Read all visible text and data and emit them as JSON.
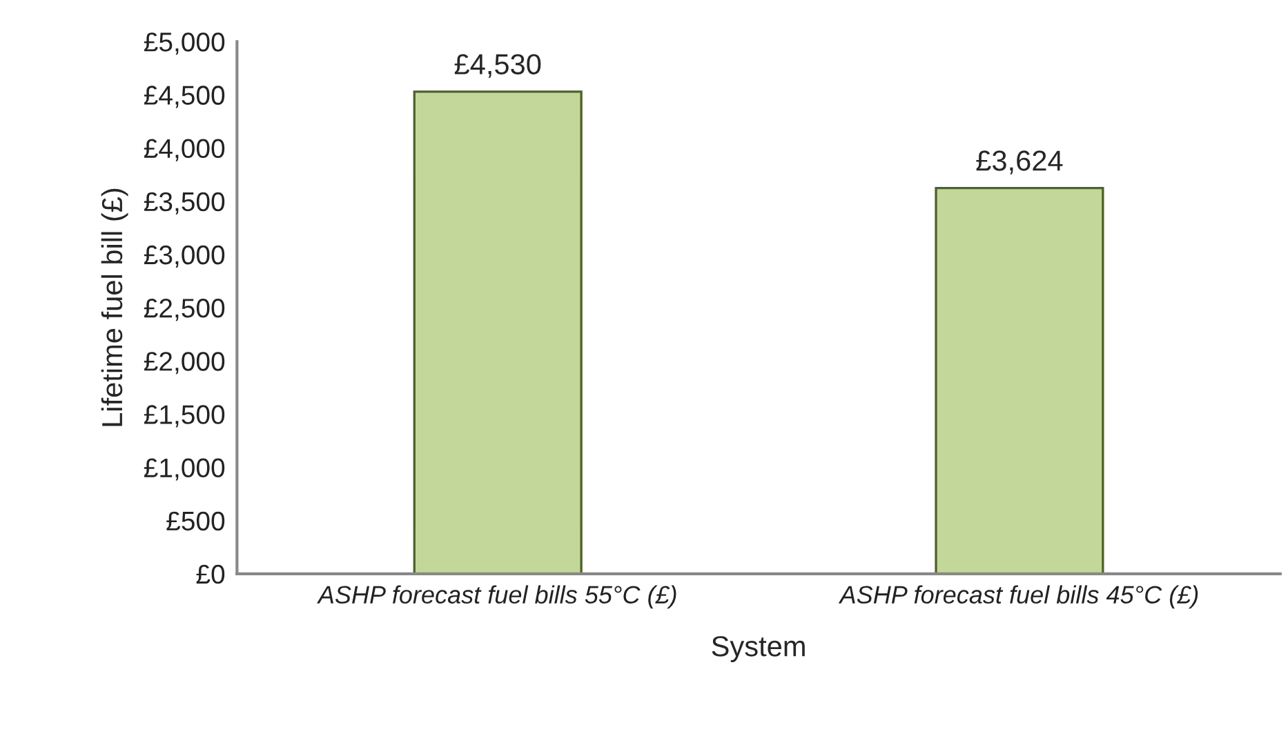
{
  "chart_data": {
    "type": "bar",
    "xlabel": "System",
    "ylabel": "Lifetime fuel bill (£)",
    "categories": [
      "ASHP forecast fuel bills 55°C (£)",
      "ASHP forecast fuel bills 45°C (£)"
    ],
    "values": [
      4530,
      3624
    ],
    "value_labels": [
      "£4,530",
      "£3,624"
    ],
    "color": "#c4d79b",
    "ylim": [
      0,
      5000
    ],
    "yticks": [
      {
        "value": 0,
        "label": "£0"
      },
      {
        "value": 500,
        "label": "£500"
      },
      {
        "value": 1000,
        "label": "£1,000"
      },
      {
        "value": 1500,
        "label": "£1,500"
      },
      {
        "value": 2000,
        "label": "£2,000"
      },
      {
        "value": 2500,
        "label": "£2,500"
      },
      {
        "value": 3000,
        "label": "£3,000"
      },
      {
        "value": 3500,
        "label": "£3,500"
      },
      {
        "value": 4000,
        "label": "£4,000"
      },
      {
        "value": 4500,
        "label": "£4,500"
      },
      {
        "value": 5000,
        "label": "£5,000"
      }
    ],
    "grid": false,
    "legend": false
  }
}
